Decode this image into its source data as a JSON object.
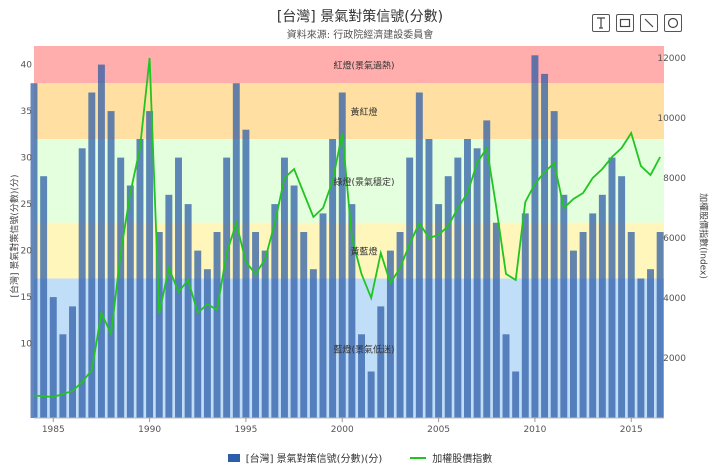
{
  "header": {
    "title": "[台灣] 景氣對策信號(分數)",
    "subtitle": "資料來源: 行政院經濟建設委員會"
  },
  "toolbar": {
    "buttons": [
      {
        "name": "text-tool-button",
        "icon": "text-cursor-icon"
      },
      {
        "name": "rectangle-tool-button",
        "icon": "rectangle-icon"
      },
      {
        "name": "line-tool-button",
        "icon": "diagonal-line-icon"
      },
      {
        "name": "circle-tool-button",
        "icon": "circle-icon"
      }
    ]
  },
  "legend": {
    "bar_label": "[台灣] 景氣對策信號(分數)(分)",
    "line_label": "加權股價指數"
  },
  "chart_data": {
    "type": "bar",
    "x_ticks": [
      "1985",
      "1990",
      "1995",
      "2000",
      "2005",
      "2010",
      "2015"
    ],
    "x_range": [
      1984.0,
      2016.7
    ],
    "left_axis": {
      "label": "[台灣] 景氣對策信號(分數)(分)",
      "range": [
        2,
        42
      ],
      "ticks": [
        "10",
        "15",
        "20",
        "25",
        "30",
        "35",
        "40"
      ]
    },
    "right_axis": {
      "label": "加權股價指數(Index)",
      "range": [
        0,
        12400
      ],
      "ticks": [
        "2000",
        "4000",
        "6000",
        "8000",
        "10000",
        "12000"
      ]
    },
    "bands": [
      {
        "label": "紅燈(景氣過熱)",
        "from": 38,
        "to": 42,
        "color": "#ff8a8a"
      },
      {
        "label": "黃紅燈",
        "from": 32,
        "to": 38,
        "color": "#ffd37a"
      },
      {
        "label": "綠燈(景氣穩定)",
        "from": 23,
        "to": 32,
        "color": "#d9ffd0"
      },
      {
        "label": "黃藍燈",
        "from": 17,
        "to": 23,
        "color": "#fff2a0"
      },
      {
        "label": "藍燈(景氣低迷)",
        "from": 2,
        "to": 17,
        "color": "#a7d0f5"
      }
    ],
    "series": [
      {
        "name": "[台灣] 景氣對策信號(分數)(分)",
        "type": "bar",
        "color": "#2f5ea8",
        "x": [
          1984.0,
          1984.5,
          1985.0,
          1985.5,
          1986.0,
          1986.5,
          1987.0,
          1987.5,
          1988.0,
          1988.5,
          1989.0,
          1989.5,
          1990.0,
          1990.5,
          1991.0,
          1991.5,
          1992.0,
          1992.5,
          1993.0,
          1993.5,
          1994.0,
          1994.5,
          1995.0,
          1995.5,
          1996.0,
          1996.5,
          1997.0,
          1997.5,
          1998.0,
          1998.5,
          1999.0,
          1999.5,
          2000.0,
          2000.5,
          2001.0,
          2001.5,
          2002.0,
          2002.5,
          2003.0,
          2003.5,
          2004.0,
          2004.5,
          2005.0,
          2005.5,
          2006.0,
          2006.5,
          2007.0,
          2007.5,
          2008.0,
          2008.5,
          2009.0,
          2009.5,
          2010.0,
          2010.5,
          2011.0,
          2011.5,
          2012.0,
          2012.5,
          2013.0,
          2013.5,
          2014.0,
          2014.5,
          2015.0,
          2015.5,
          2016.0,
          2016.5
        ],
        "values": [
          38,
          28,
          15,
          11,
          14,
          31,
          37,
          40,
          35,
          30,
          27,
          32,
          35,
          22,
          26,
          30,
          25,
          20,
          18,
          22,
          30,
          38,
          33,
          22,
          20,
          25,
          30,
          27,
          22,
          18,
          24,
          32,
          37,
          25,
          11,
          7,
          14,
          20,
          22,
          30,
          37,
          32,
          25,
          28,
          30,
          32,
          31,
          34,
          23,
          11,
          7,
          24,
          41,
          39,
          35,
          26,
          20,
          22,
          24,
          26,
          30,
          28,
          22,
          17,
          18,
          22
        ]
      },
      {
        "name": "加權股價指數",
        "type": "line",
        "color": "#22c422",
        "x": [
          1984.0,
          1985.0,
          1986.0,
          1986.5,
          1987.0,
          1987.5,
          1988.0,
          1988.5,
          1989.0,
          1989.5,
          1990.0,
          1990.5,
          1991.0,
          1991.5,
          1992.0,
          1992.5,
          1993.0,
          1993.5,
          1994.0,
          1994.5,
          1995.0,
          1995.5,
          1996.0,
          1996.5,
          1997.0,
          1997.5,
          1998.0,
          1998.5,
          1999.0,
          1999.5,
          2000.0,
          2000.5,
          2001.0,
          2001.5,
          2002.0,
          2002.5,
          2003.0,
          2003.5,
          2004.0,
          2004.5,
          2005.0,
          2005.5,
          2006.0,
          2006.5,
          2007.0,
          2007.5,
          2008.0,
          2008.5,
          2009.0,
          2009.5,
          2010.0,
          2010.5,
          2011.0,
          2011.5,
          2012.0,
          2012.5,
          2013.0,
          2013.5,
          2014.0,
          2014.5,
          2015.0,
          2015.5,
          2016.0,
          2016.5
        ],
        "values": [
          750,
          700,
          900,
          1200,
          1600,
          3500,
          2800,
          5500,
          7500,
          9000,
          12000,
          3500,
          5000,
          4200,
          4600,
          3500,
          3800,
          3600,
          5500,
          6500,
          5200,
          4800,
          5300,
          6500,
          8000,
          8300,
          7500,
          6700,
          7000,
          7900,
          9500,
          6000,
          4800,
          4000,
          5500,
          4500,
          5000,
          5800,
          6500,
          6000,
          6100,
          6400,
          7000,
          7500,
          8500,
          9000,
          7000,
          4800,
          4600,
          7200,
          7800,
          8200,
          8500,
          7000,
          7300,
          7500,
          8000,
          8300,
          8700,
          9000,
          9500,
          8400,
          8100,
          8700
        ]
      }
    ]
  }
}
